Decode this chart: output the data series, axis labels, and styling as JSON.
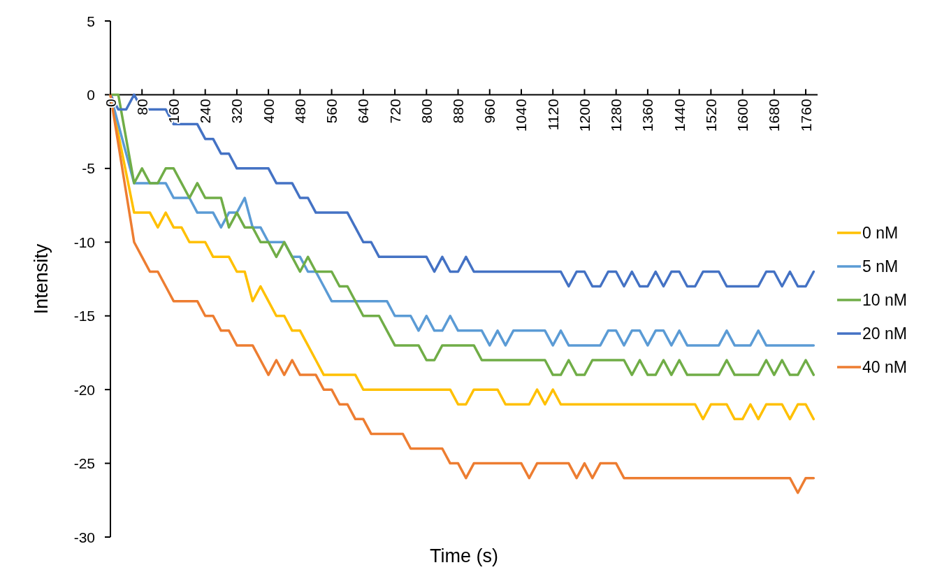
{
  "chart_data": {
    "type": "line",
    "xlabel": "Time (s)",
    "ylabel": "Intensity",
    "xlim": [
      0,
      1790
    ],
    "xticks": [
      0,
      80,
      160,
      240,
      320,
      400,
      480,
      560,
      640,
      720,
      800,
      880,
      960,
      1040,
      1120,
      1200,
      1280,
      1360,
      1440,
      1520,
      1600,
      1680,
      1760
    ],
    "ylim": [
      -30,
      5
    ],
    "yticks": [
      -30,
      -25,
      -20,
      -15,
      -10,
      -5,
      0,
      5
    ],
    "grid": false,
    "legend": "right",
    "marker": "none",
    "line_style": "solid",
    "series": [
      {
        "name": "0 nM",
        "color": "#ffc000",
        "x": [
          0,
          60,
          100,
          120,
          140,
          160,
          180,
          200,
          240,
          260,
          300,
          320,
          340,
          360,
          380,
          400,
          420,
          440,
          460,
          480,
          500,
          520,
          540,
          620,
          640,
          860,
          880,
          900,
          920,
          980,
          1000,
          1060,
          1080,
          1100,
          1120,
          1140,
          1480,
          1500,
          1520,
          1560,
          1580,
          1600,
          1620,
          1640,
          1660,
          1700,
          1720,
          1740,
          1760,
          1780
        ],
        "values": [
          0,
          -8,
          -8,
          -9,
          -8,
          -9,
          -9,
          -10,
          -10,
          -11,
          -11,
          -12,
          -12,
          -14,
          -13,
          -14,
          -15,
          -15,
          -16,
          -16,
          -17,
          -18,
          -19,
          -19,
          -20,
          -20,
          -21,
          -21,
          -20,
          -20,
          -21,
          -21,
          -20,
          -21,
          -20,
          -21,
          -21,
          -22,
          -21,
          -21,
          -22,
          -22,
          -21,
          -22,
          -21,
          -21,
          -22,
          -21,
          -21,
          -22
        ]
      },
      {
        "name": "5 nM",
        "color": "#5b9bd5",
        "x": [
          0,
          60,
          140,
          160,
          200,
          220,
          260,
          280,
          300,
          320,
          340,
          360,
          380,
          400,
          440,
          460,
          480,
          500,
          520,
          540,
          560,
          700,
          720,
          760,
          780,
          800,
          820,
          840,
          860,
          880,
          940,
          960,
          980,
          1000,
          1020,
          1100,
          1120,
          1140,
          1160,
          1240,
          1260,
          1280,
          1300,
          1320,
          1340,
          1360,
          1380,
          1400,
          1420,
          1440,
          1460,
          1540,
          1560,
          1580,
          1620,
          1640,
          1660,
          1780
        ],
        "values": [
          0,
          -6,
          -6,
          -7,
          -7,
          -8,
          -8,
          -9,
          -8,
          -8,
          -7,
          -9,
          -9,
          -10,
          -10,
          -11,
          -11,
          -12,
          -12,
          -13,
          -14,
          -14,
          -15,
          -15,
          -16,
          -15,
          -16,
          -16,
          -15,
          -16,
          -16,
          -17,
          -16,
          -17,
          -16,
          -16,
          -17,
          -16,
          -17,
          -17,
          -16,
          -16,
          -17,
          -16,
          -16,
          -17,
          -16,
          -16,
          -17,
          -16,
          -17,
          -17,
          -16,
          -17,
          -17,
          -16,
          -17,
          -17
        ]
      },
      {
        "name": "10 nM",
        "color": "#70ad47",
        "x": [
          0,
          20,
          60,
          80,
          100,
          120,
          140,
          160,
          180,
          200,
          220,
          240,
          280,
          300,
          320,
          340,
          360,
          380,
          400,
          420,
          440,
          460,
          480,
          500,
          520,
          560,
          580,
          600,
          620,
          640,
          680,
          700,
          720,
          780,
          800,
          820,
          840,
          920,
          940,
          1100,
          1120,
          1140,
          1160,
          1180,
          1200,
          1220,
          1300,
          1320,
          1340,
          1360,
          1380,
          1400,
          1420,
          1440,
          1460,
          1540,
          1560,
          1580,
          1640,
          1660,
          1680,
          1700,
          1720,
          1740,
          1760,
          1780
        ],
        "values": [
          0,
          0,
          -6,
          -5,
          -6,
          -6,
          -5,
          -5,
          -6,
          -7,
          -6,
          -7,
          -7,
          -9,
          -8,
          -9,
          -9,
          -10,
          -10,
          -11,
          -10,
          -11,
          -12,
          -11,
          -12,
          -12,
          -13,
          -13,
          -14,
          -15,
          -15,
          -16,
          -17,
          -17,
          -18,
          -18,
          -17,
          -17,
          -18,
          -18,
          -19,
          -19,
          -18,
          -19,
          -19,
          -18,
          -18,
          -19,
          -18,
          -19,
          -19,
          -18,
          -19,
          -18,
          -19,
          -19,
          -18,
          -19,
          -19,
          -18,
          -19,
          -18,
          -19,
          -19,
          -18,
          -19
        ]
      },
      {
        "name": "20 nM",
        "color": "#4472c4",
        "x": [
          0,
          20,
          40,
          60,
          80,
          140,
          160,
          220,
          240,
          260,
          280,
          300,
          320,
          400,
          420,
          460,
          480,
          500,
          520,
          600,
          620,
          640,
          660,
          680,
          800,
          820,
          840,
          860,
          880,
          900,
          920,
          1140,
          1160,
          1180,
          1200,
          1220,
          1240,
          1260,
          1280,
          1300,
          1320,
          1340,
          1360,
          1380,
          1400,
          1420,
          1440,
          1460,
          1480,
          1500,
          1540,
          1560,
          1640,
          1660,
          1680,
          1700,
          1720,
          1740,
          1760,
          1780
        ],
        "values": [
          0,
          -1,
          -1,
          0,
          -1,
          -1,
          -2,
          -2,
          -3,
          -3,
          -4,
          -4,
          -5,
          -5,
          -6,
          -6,
          -7,
          -7,
          -8,
          -8,
          -9,
          -10,
          -10,
          -11,
          -11,
          -12,
          -11,
          -12,
          -12,
          -11,
          -12,
          -12,
          -13,
          -12,
          -12,
          -13,
          -13,
          -12,
          -12,
          -13,
          -12,
          -13,
          -13,
          -12,
          -13,
          -12,
          -12,
          -13,
          -13,
          -12,
          -12,
          -13,
          -13,
          -12,
          -12,
          -13,
          -12,
          -13,
          -13,
          -12
        ]
      },
      {
        "name": "40 nM",
        "color": "#ed7d31",
        "x": [
          0,
          60,
          80,
          100,
          120,
          140,
          160,
          220,
          240,
          260,
          280,
          300,
          320,
          360,
          380,
          400,
          420,
          440,
          460,
          480,
          520,
          540,
          560,
          580,
          600,
          620,
          640,
          660,
          740,
          760,
          840,
          860,
          880,
          900,
          920,
          1040,
          1060,
          1080,
          1160,
          1180,
          1200,
          1220,
          1240,
          1280,
          1300,
          1720,
          1740,
          1760,
          1780
        ],
        "values": [
          0,
          -10,
          -11,
          -12,
          -12,
          -13,
          -14,
          -14,
          -15,
          -15,
          -16,
          -16,
          -17,
          -17,
          -18,
          -19,
          -18,
          -19,
          -18,
          -19,
          -19,
          -20,
          -20,
          -21,
          -21,
          -22,
          -22,
          -23,
          -23,
          -24,
          -24,
          -25,
          -25,
          -26,
          -25,
          -25,
          -26,
          -25,
          -25,
          -26,
          -25,
          -26,
          -25,
          -25,
          -26,
          -26,
          -27,
          -26,
          -26
        ]
      }
    ]
  }
}
